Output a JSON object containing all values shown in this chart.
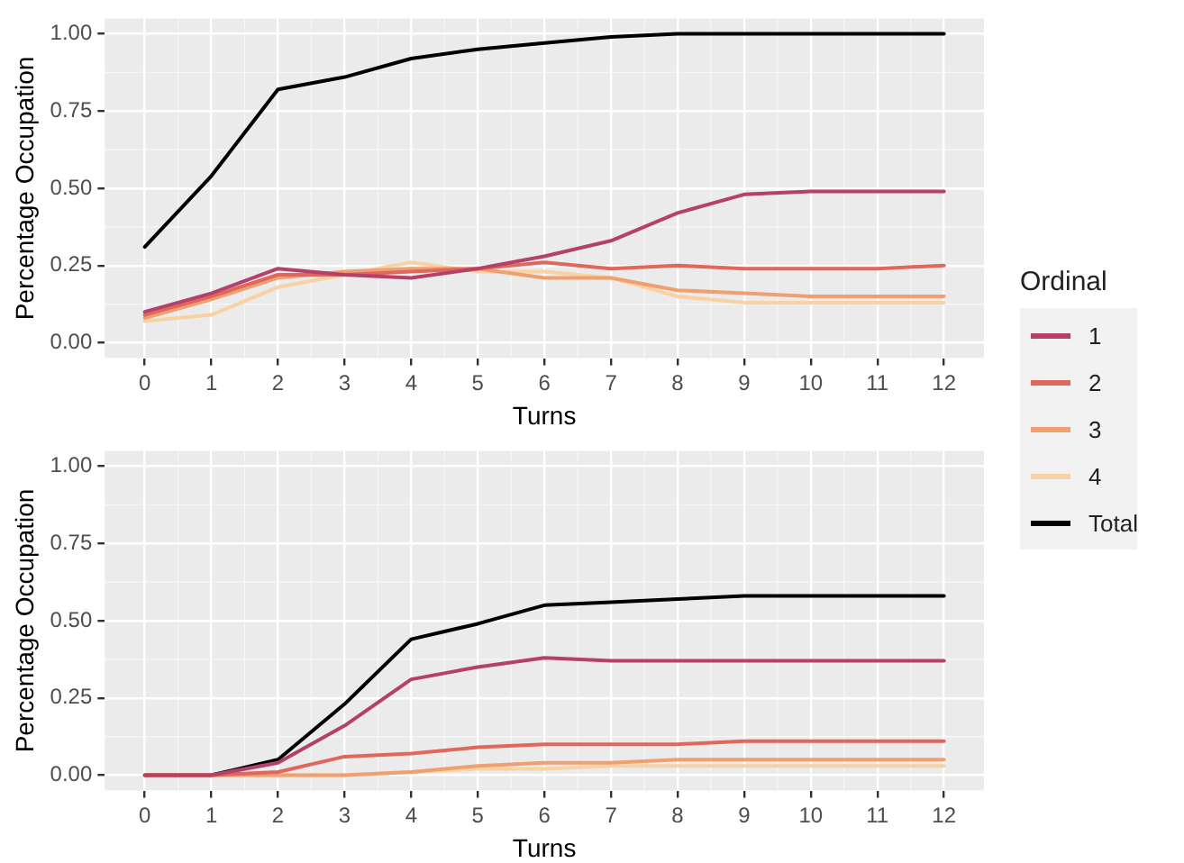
{
  "chart_data": [
    {
      "type": "line",
      "xlabel": "Turns",
      "ylabel": "Percentage Occupation",
      "legend_title": "Ordinal",
      "legend": "right",
      "grid": true,
      "marker": "none",
      "line_style": "solid",
      "x": [
        0,
        1,
        2,
        3,
        4,
        5,
        6,
        7,
        8,
        9,
        10,
        11,
        12
      ],
      "xlim": [
        -0.6,
        12.6
      ],
      "xticks": [
        0,
        1,
        2,
        3,
        4,
        5,
        6,
        7,
        8,
        9,
        10,
        11,
        12
      ],
      "ylim": [
        -0.05,
        1.05
      ],
      "yticks": [
        {
          "value": 0,
          "label": "0.00"
        },
        {
          "value": 0.25,
          "label": "0.25"
        },
        {
          "value": 0.5,
          "label": "0.50"
        },
        {
          "value": 0.75,
          "label": "0.75"
        },
        {
          "value": 1,
          "label": "1.00"
        }
      ],
      "series": [
        {
          "name": "1",
          "color": "#b5416b",
          "values": [
            0.1,
            0.16,
            0.24,
            0.22,
            0.21,
            0.24,
            0.28,
            0.33,
            0.42,
            0.48,
            0.49,
            0.49,
            0.49
          ]
        },
        {
          "name": "2",
          "color": "#e0675c",
          "values": [
            0.09,
            0.15,
            0.22,
            0.22,
            0.23,
            0.24,
            0.26,
            0.24,
            0.25,
            0.24,
            0.24,
            0.24,
            0.25
          ]
        },
        {
          "name": "3",
          "color": "#f0a070",
          "values": [
            0.08,
            0.14,
            0.21,
            0.23,
            0.24,
            0.24,
            0.21,
            0.21,
            0.17,
            0.16,
            0.15,
            0.15,
            0.15
          ]
        },
        {
          "name": "4",
          "color": "#f8d2a2",
          "values": [
            0.07,
            0.09,
            0.18,
            0.22,
            0.26,
            0.23,
            0.23,
            0.21,
            0.15,
            0.13,
            0.13,
            0.13,
            0.13
          ]
        },
        {
          "name": "Total",
          "color": "#000000",
          "values": [
            0.31,
            0.54,
            0.82,
            0.86,
            0.92,
            0.95,
            0.97,
            0.99,
            1.0,
            1.0,
            1.0,
            1.0,
            1.0
          ]
        }
      ]
    },
    {
      "type": "line",
      "xlabel": "Turns",
      "ylabel": "Percentage Occupation",
      "grid": true,
      "marker": "none",
      "line_style": "solid",
      "x": [
        0,
        1,
        2,
        3,
        4,
        5,
        6,
        7,
        8,
        9,
        10,
        11,
        12
      ],
      "xlim": [
        -0.6,
        12.6
      ],
      "xticks": [
        0,
        1,
        2,
        3,
        4,
        5,
        6,
        7,
        8,
        9,
        10,
        11,
        12
      ],
      "ylim": [
        -0.05,
        1.05
      ],
      "yticks": [
        {
          "value": 0,
          "label": "0.00"
        },
        {
          "value": 0.25,
          "label": "0.25"
        },
        {
          "value": 0.5,
          "label": "0.50"
        },
        {
          "value": 0.75,
          "label": "0.75"
        },
        {
          "value": 1,
          "label": "1.00"
        }
      ],
      "series": [
        {
          "color": "#b5416b",
          "values": [
            0,
            0,
            0.04,
            0.16,
            0.31,
            0.35,
            0.38,
            0.37,
            0.37,
            0.37,
            0.37,
            0.37,
            0.37
          ]
        },
        {
          "color": "#e0675c",
          "values": [
            0,
            0,
            0.01,
            0.06,
            0.07,
            0.09,
            0.1,
            0.1,
            0.1,
            0.11,
            0.11,
            0.11,
            0.11
          ]
        },
        {
          "color": "#f0a070",
          "values": [
            0,
            0,
            0,
            0,
            0.01,
            0.03,
            0.04,
            0.04,
            0.05,
            0.05,
            0.05,
            0.05,
            0.05
          ]
        },
        {
          "color": "#f8d2a2",
          "values": [
            0,
            0,
            0,
            0,
            0.01,
            0.02,
            0.02,
            0.03,
            0.03,
            0.03,
            0.03,
            0.03,
            0.03
          ]
        },
        {
          "color": "#000000",
          "values": [
            0,
            0,
            0.05,
            0.23,
            0.44,
            0.49,
            0.55,
            0.56,
            0.57,
            0.58,
            0.58,
            0.58,
            0.58
          ]
        }
      ]
    }
  ]
}
